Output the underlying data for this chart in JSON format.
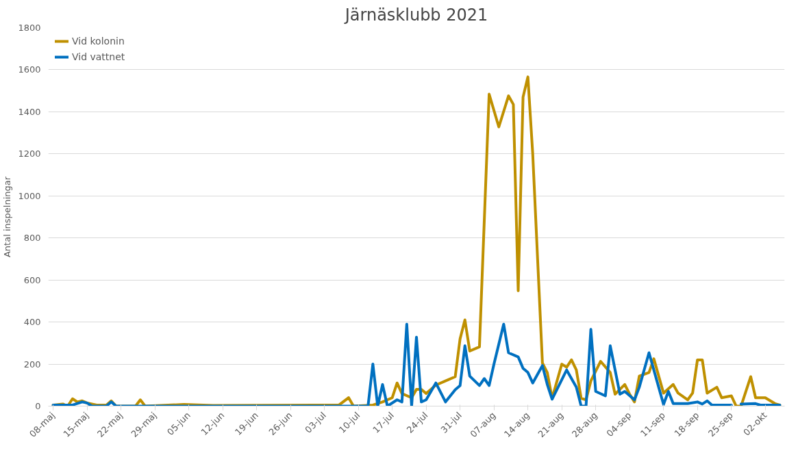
{
  "chart_data": {
    "type": "line",
    "title": "Järnäsklubb 2021",
    "ylabel": "Antal inspelningar",
    "xlim": [
      "2021-05-07",
      "2021-10-06"
    ],
    "ylim": [
      0,
      1800
    ],
    "yticks": [
      0,
      200,
      400,
      600,
      800,
      1000,
      1200,
      1400,
      1600,
      1800
    ],
    "xticks": [
      {
        "value": "2021-05-08",
        "label": "08-maj"
      },
      {
        "value": "2021-05-15",
        "label": "15-maj"
      },
      {
        "value": "2021-05-22",
        "label": "22-maj"
      },
      {
        "value": "2021-05-29",
        "label": "29-maj"
      },
      {
        "value": "2021-06-05",
        "label": "05-jun"
      },
      {
        "value": "2021-06-12",
        "label": "12-jun"
      },
      {
        "value": "2021-06-19",
        "label": "19-jun"
      },
      {
        "value": "2021-06-26",
        "label": "26-jun"
      },
      {
        "value": "2021-07-03",
        "label": "03-jul"
      },
      {
        "value": "2021-07-10",
        "label": "10-jul"
      },
      {
        "value": "2021-07-17",
        "label": "17-jul"
      },
      {
        "value": "2021-07-24",
        "label": "24-jul"
      },
      {
        "value": "2021-07-31",
        "label": "31-jul"
      },
      {
        "value": "2021-08-07",
        "label": "07-aug"
      },
      {
        "value": "2021-08-14",
        "label": "14-aug"
      },
      {
        "value": "2021-08-21",
        "label": "21-aug"
      },
      {
        "value": "2021-08-28",
        "label": "28-aug"
      },
      {
        "value": "2021-09-04",
        "label": "04-sep"
      },
      {
        "value": "2021-09-11",
        "label": "11-sep"
      },
      {
        "value": "2021-09-18",
        "label": "18-sep"
      },
      {
        "value": "2021-09-25",
        "label": "25-sep"
      },
      {
        "value": "2021-10-02",
        "label": "02-okt"
      }
    ],
    "grid": "y",
    "legend": "top left",
    "line_style": "solid",
    "marker": "none",
    "series": [
      {
        "name": "Vid kolonin",
        "color": "#bf9000",
        "x": [
          "2021-05-08",
          "2021-05-10",
          "2021-05-11",
          "2021-05-12",
          "2021-05-13",
          "2021-05-14",
          "2021-05-15",
          "2021-05-17",
          "2021-05-19",
          "2021-05-20",
          "2021-05-21",
          "2021-05-25",
          "2021-05-26",
          "2021-05-27",
          "2021-06-04",
          "2021-06-10",
          "2021-07-01",
          "2021-07-06",
          "2021-07-08",
          "2021-07-09",
          "2021-07-13",
          "2021-07-15",
          "2021-07-17",
          "2021-07-18",
          "2021-07-19",
          "2021-07-21",
          "2021-07-22",
          "2021-07-23",
          "2021-07-24",
          "2021-07-26",
          "2021-07-28",
          "2021-07-30",
          "2021-07-31",
          "2021-08-01",
          "2021-08-02",
          "2021-08-04",
          "2021-08-06",
          "2021-08-08",
          "2021-08-10",
          "2021-08-11",
          "2021-08-12",
          "2021-08-13",
          "2021-08-14",
          "2021-08-15",
          "2021-08-17",
          "2021-08-18",
          "2021-08-19",
          "2021-08-21",
          "2021-08-22",
          "2021-08-23",
          "2021-08-24",
          "2021-08-25",
          "2021-08-26",
          "2021-08-27",
          "2021-08-29",
          "2021-08-31",
          "2021-09-01",
          "2021-09-03",
          "2021-09-04",
          "2021-09-05",
          "2021-09-06",
          "2021-09-08",
          "2021-09-09",
          "2021-09-11",
          "2021-09-13",
          "2021-09-14",
          "2021-09-16",
          "2021-09-17",
          "2021-09-18",
          "2021-09-19",
          "2021-09-20",
          "2021-09-22",
          "2021-09-23",
          "2021-09-25",
          "2021-09-26",
          "2021-09-27",
          "2021-09-29",
          "2021-09-30",
          "2021-10-02",
          "2021-10-04",
          "2021-10-05"
        ],
        "values": [
          5,
          10,
          0,
          35,
          20,
          25,
          15,
          5,
          5,
          25,
          0,
          0,
          30,
          0,
          8,
          3,
          5,
          5,
          40,
          0,
          5,
          20,
          40,
          110,
          60,
          40,
          80,
          80,
          60,
          100,
          120,
          140,
          320,
          410,
          262,
          282,
          1484,
          1328,
          1476,
          1435,
          549,
          1470,
          1566,
          1200,
          205,
          160,
          37,
          200,
          185,
          220,
          172,
          37,
          30,
          120,
          213,
          160,
          57,
          103,
          57,
          20,
          143,
          160,
          225,
          62,
          103,
          62,
          30,
          62,
          220,
          220,
          62,
          90,
          40,
          49,
          0,
          0,
          140,
          40,
          40,
          12,
          5
        ]
      },
      {
        "name": "Vid vattnet",
        "color": "#0070c0",
        "x": [
          "2021-05-08",
          "2021-05-12",
          "2021-05-14",
          "2021-05-15",
          "2021-05-16",
          "2021-05-19",
          "2021-05-20",
          "2021-05-21",
          "2021-07-10",
          "2021-07-12",
          "2021-07-13",
          "2021-07-14",
          "2021-07-15",
          "2021-07-16",
          "2021-07-18",
          "2021-07-19",
          "2021-07-20",
          "2021-07-21",
          "2021-07-22",
          "2021-07-23",
          "2021-07-24",
          "2021-07-26",
          "2021-07-28",
          "2021-07-30",
          "2021-07-31",
          "2021-08-01",
          "2021-08-02",
          "2021-08-04",
          "2021-08-05",
          "2021-08-06",
          "2021-08-07",
          "2021-08-09",
          "2021-08-10",
          "2021-08-12",
          "2021-08-13",
          "2021-08-14",
          "2021-08-15",
          "2021-08-17",
          "2021-08-18",
          "2021-08-19",
          "2021-08-22",
          "2021-08-24",
          "2021-08-25",
          "2021-08-26",
          "2021-08-27",
          "2021-08-28",
          "2021-08-30",
          "2021-08-31",
          "2021-09-02",
          "2021-09-03",
          "2021-09-05",
          "2021-09-06",
          "2021-09-08",
          "2021-09-10",
          "2021-09-11",
          "2021-09-12",
          "2021-09-13",
          "2021-09-16",
          "2021-09-18",
          "2021-09-19",
          "2021-09-20",
          "2021-09-21",
          "2021-09-24",
          "2021-09-25",
          "2021-09-26",
          "2021-09-27",
          "2021-09-30",
          "2021-10-01",
          "2021-10-05"
        ],
        "values": [
          5,
          5,
          20,
          15,
          0,
          0,
          20,
          0,
          0,
          0,
          200,
          0,
          103,
          0,
          30,
          20,
          390,
          0,
          328,
          20,
          30,
          110,
          20,
          78,
          98,
          287,
          143,
          98,
          131,
          98,
          200,
          390,
          254,
          234,
          180,
          160,
          110,
          193,
          103,
          33,
          172,
          90,
          0,
          0,
          365,
          70,
          49,
          287,
          57,
          70,
          30,
          90,
          254,
          90,
          8,
          70,
          12,
          12,
          20,
          10,
          25,
          5,
          5,
          5,
          null,
          10,
          12,
          5,
          5
        ]
      }
    ]
  }
}
